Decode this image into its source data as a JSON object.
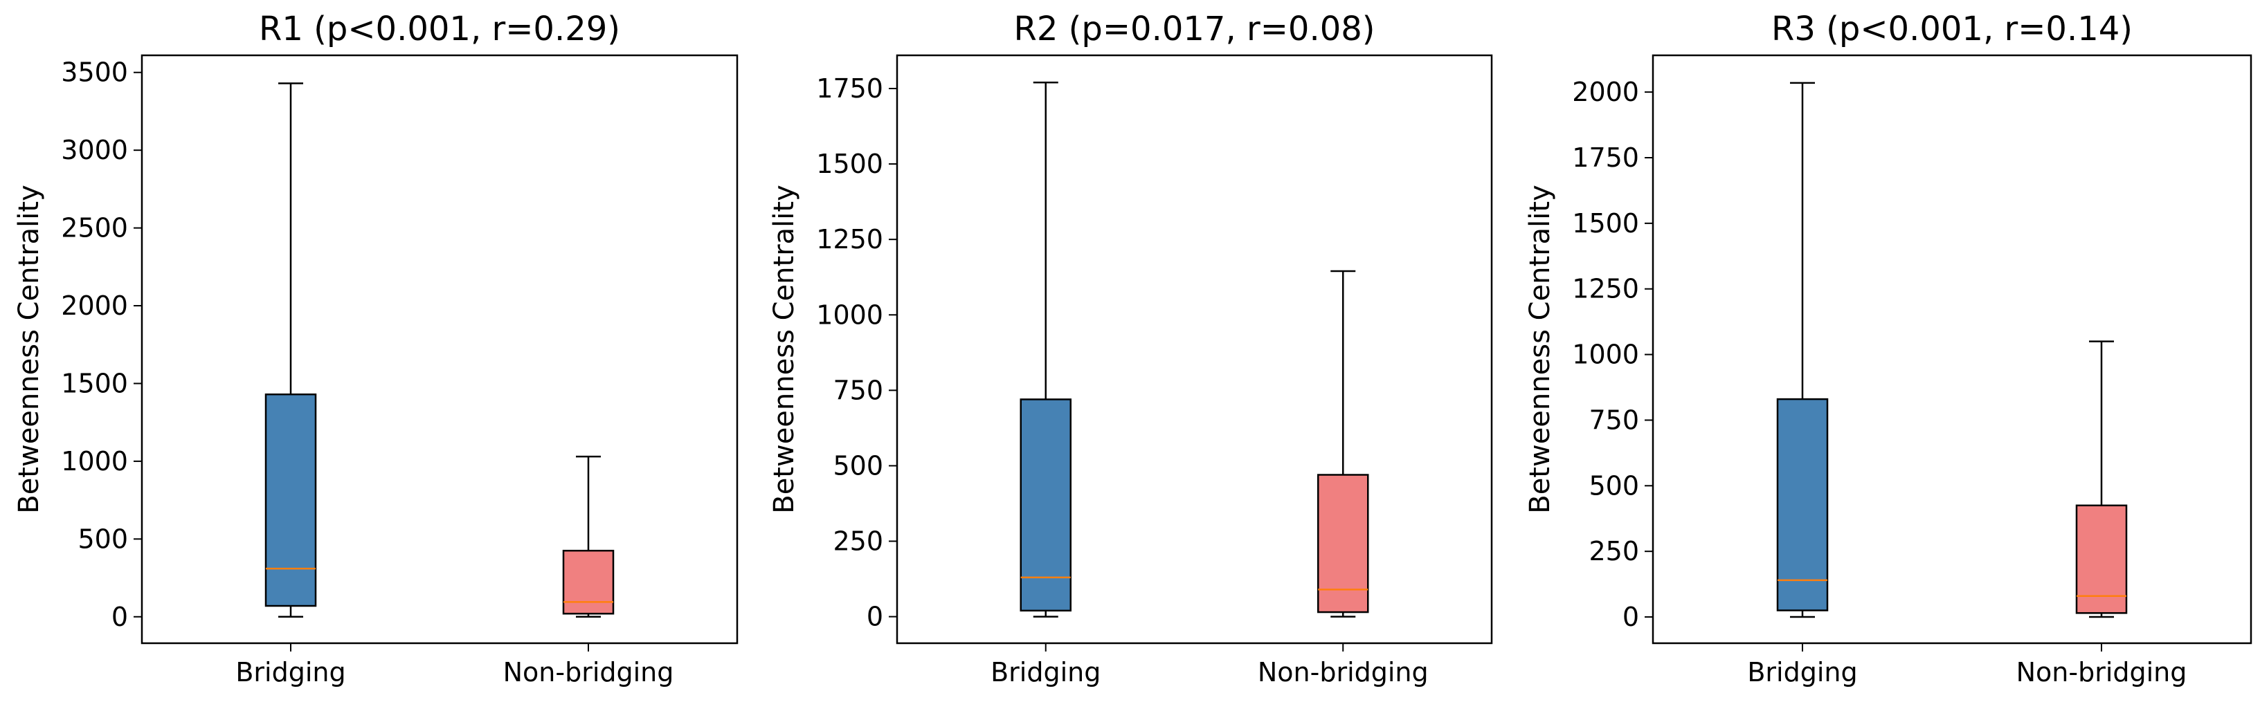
{
  "chart_data": [
    {
      "type": "box",
      "title": "R1 (p<0.001, r=0.29)",
      "xlabel": "",
      "ylabel": "Betweenness Centrality",
      "categories": [
        "Bridging",
        "Non-bridging"
      ],
      "ylim": [
        -170,
        3610
      ],
      "yticks": [
        0,
        500,
        1000,
        1500,
        2000,
        2500,
        3000,
        3500
      ],
      "boxes": [
        {
          "category": "Bridging",
          "whisker_low": 0,
          "q1": 70,
          "median": 310,
          "q3": 1430,
          "whisker_high": 3430,
          "color": "#4682b4"
        },
        {
          "category": "Non-bridging",
          "whisker_low": 0,
          "q1": 20,
          "median": 95,
          "q3": 425,
          "whisker_high": 1030,
          "color": "#f08080"
        }
      ]
    },
    {
      "type": "box",
      "title": "R2 (p=0.017, r=0.08)",
      "xlabel": "",
      "ylabel": "Betweenness Centrality",
      "categories": [
        "Bridging",
        "Non-bridging"
      ],
      "ylim": [
        -88,
        1860
      ],
      "yticks": [
        0,
        250,
        500,
        750,
        1000,
        1250,
        1500,
        1750
      ],
      "boxes": [
        {
          "category": "Bridging",
          "whisker_low": 0,
          "q1": 20,
          "median": 130,
          "q3": 720,
          "whisker_high": 1770,
          "color": "#4682b4"
        },
        {
          "category": "Non-bridging",
          "whisker_low": 0,
          "q1": 15,
          "median": 90,
          "q3": 470,
          "whisker_high": 1145,
          "color": "#f08080"
        }
      ]
    },
    {
      "type": "box",
      "title": "R3 (p<0.001, r=0.14)",
      "xlabel": "",
      "ylabel": "Betweenness Centrality",
      "categories": [
        "Bridging",
        "Non-bridging"
      ],
      "ylim": [
        -100,
        2140
      ],
      "yticks": [
        0,
        250,
        500,
        750,
        1000,
        1250,
        1500,
        1750,
        2000
      ],
      "boxes": [
        {
          "category": "Bridging",
          "whisker_low": 0,
          "q1": 25,
          "median": 140,
          "q3": 830,
          "whisker_high": 2035,
          "color": "#4682b4"
        },
        {
          "category": "Non-bridging",
          "whisker_low": 0,
          "q1": 15,
          "median": 80,
          "q3": 425,
          "whisker_high": 1050,
          "color": "#f08080"
        }
      ]
    }
  ],
  "colors": {
    "bridging": "#4682b4",
    "non_bridging": "#f08080",
    "median": "#ff7f0e",
    "axes": "#000000"
  }
}
